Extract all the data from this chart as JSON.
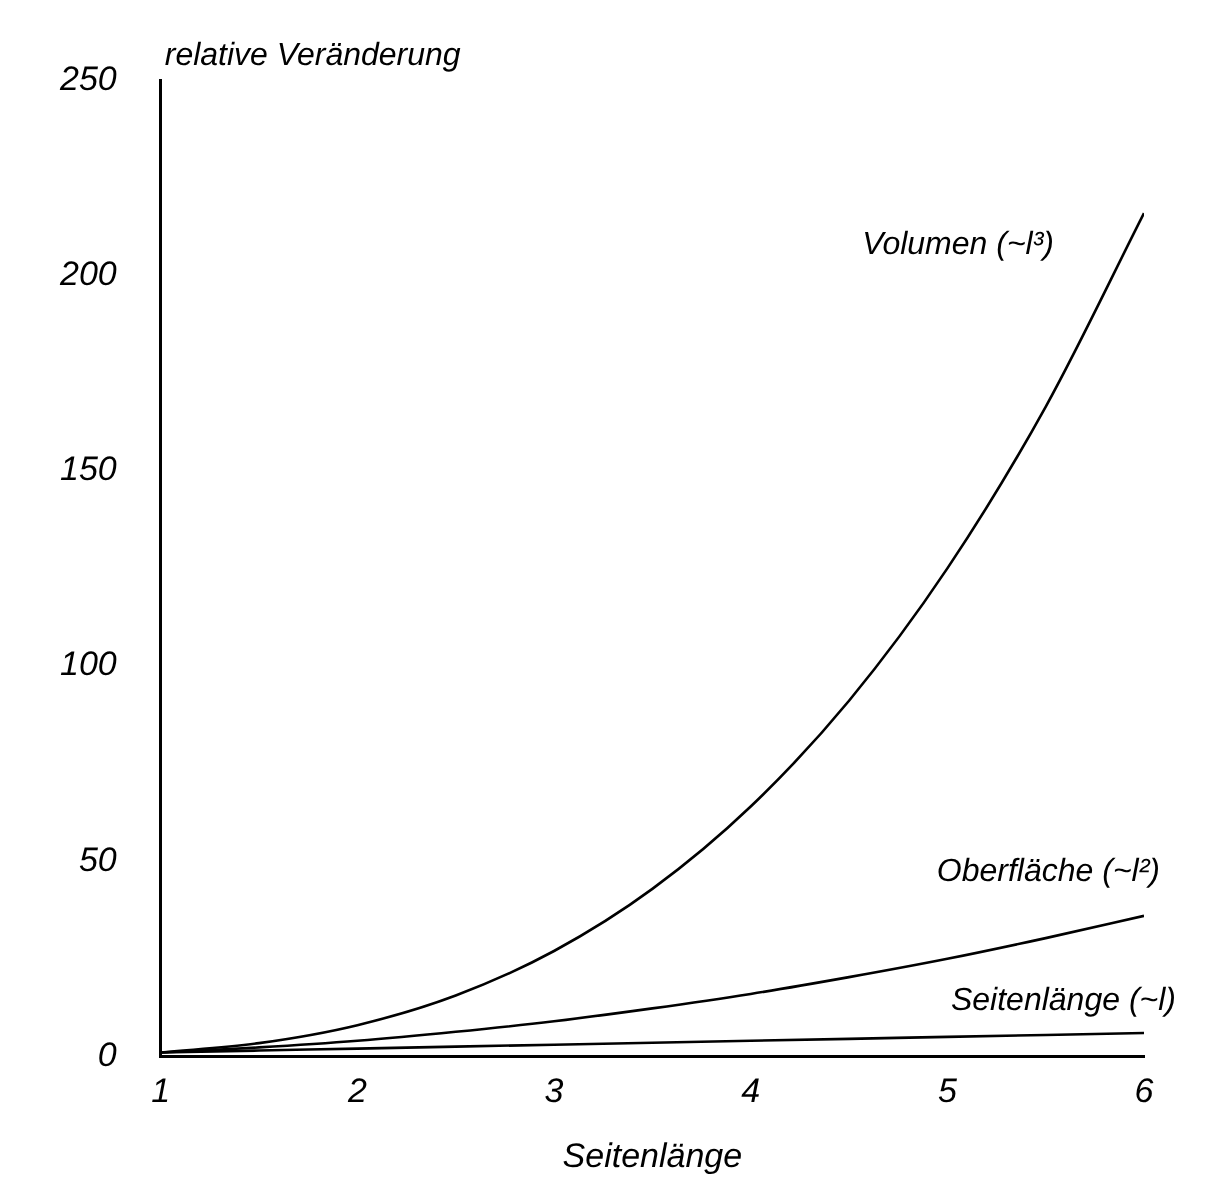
{
  "chart_data": {
    "type": "line",
    "xlabel": "Seitenlänge",
    "ylabel": "relative Veränderung",
    "x": [
      1,
      1.5,
      2,
      2.5,
      3,
      3.5,
      4,
      4.5,
      5,
      5.5,
      6
    ],
    "series": [
      {
        "name": "Volumen (~l³)",
        "color": "#000000",
        "values": [
          1,
          3.4,
          8,
          15.6,
          27,
          42.9,
          64,
          91.1,
          125,
          166.4,
          216
        ]
      },
      {
        "name": "Oberfläche (~l²)",
        "color": "#000000",
        "values": [
          1,
          2.3,
          4,
          6.3,
          9,
          12.3,
          16,
          20.3,
          25,
          30.3,
          36
        ]
      },
      {
        "name": "Seitenlänge (~l)",
        "color": "#000000",
        "values": [
          1,
          1.5,
          2,
          2.5,
          3,
          3.5,
          4,
          4.5,
          5,
          5.5,
          6
        ]
      }
    ],
    "xlim": [
      1,
      6
    ],
    "xticks": [
      1,
      2,
      3,
      4,
      5,
      6
    ],
    "ylim": [
      0,
      250
    ],
    "yticks": [
      0,
      50,
      100,
      150,
      200,
      250
    ],
    "grid": false,
    "legend": false,
    "marker": "none",
    "line_style": "solid"
  }
}
